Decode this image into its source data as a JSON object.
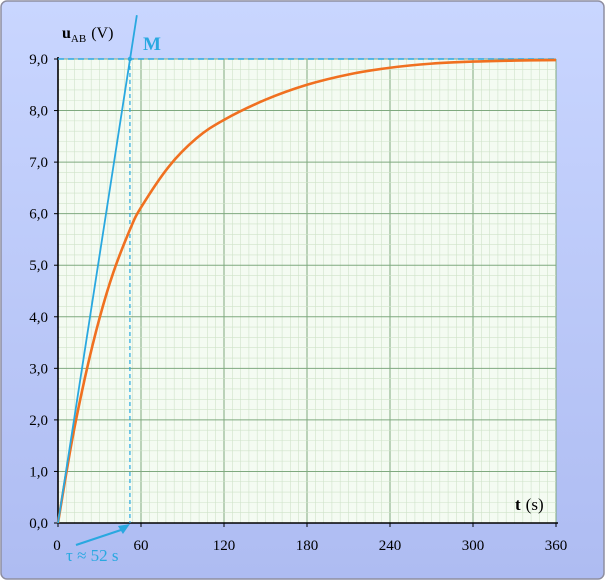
{
  "chart_data": {
    "type": "line",
    "title": "",
    "xlabel_var": "t",
    "xlabel_unit": "(s)",
    "ylabel_var": "u",
    "ylabel_sub": "AB",
    "ylabel_unit": "(V)",
    "xlim": [
      0,
      360
    ],
    "ylim": [
      0,
      9
    ],
    "x_ticks": [
      0,
      60,
      120,
      180,
      240,
      300,
      360
    ],
    "x_tick_labels": [
      "0",
      "60",
      "120",
      "180",
      "240",
      "300",
      "360"
    ],
    "y_ticks": [
      0,
      1,
      2,
      3,
      4,
      5,
      6,
      7,
      8,
      9
    ],
    "y_tick_labels": [
      "0,0",
      "1,0",
      "2,0",
      "3,0",
      "4,0",
      "5,0",
      "6,0",
      "7,0",
      "8,0",
      "9,0"
    ],
    "grid": true,
    "series": [
      {
        "name": "",
        "color": "#f07020",
        "x": [
          0,
          10,
          20,
          30,
          40,
          52,
          60,
          80,
          100,
          120,
          150,
          180,
          210,
          240,
          270,
          300,
          330,
          360
        ],
        "y": [
          0,
          1.58,
          2.88,
          3.97,
          4.86,
          5.69,
          6.12,
          6.91,
          7.46,
          7.82,
          8.21,
          8.5,
          8.7,
          8.83,
          8.91,
          8.95,
          8.97,
          8.98
        ]
      }
    ],
    "tangent": {
      "color": "#29a8e0",
      "x": [
        0,
        57
      ],
      "y": [
        0,
        9.85
      ]
    },
    "asymptote": {
      "y": 9,
      "color": "#29a8e0"
    },
    "point_label": "M",
    "point": {
      "x": 52,
      "y": 9
    },
    "tau_label": "τ ≈ 52 s",
    "tau_value": 52,
    "accent": "#29a8e0"
  }
}
